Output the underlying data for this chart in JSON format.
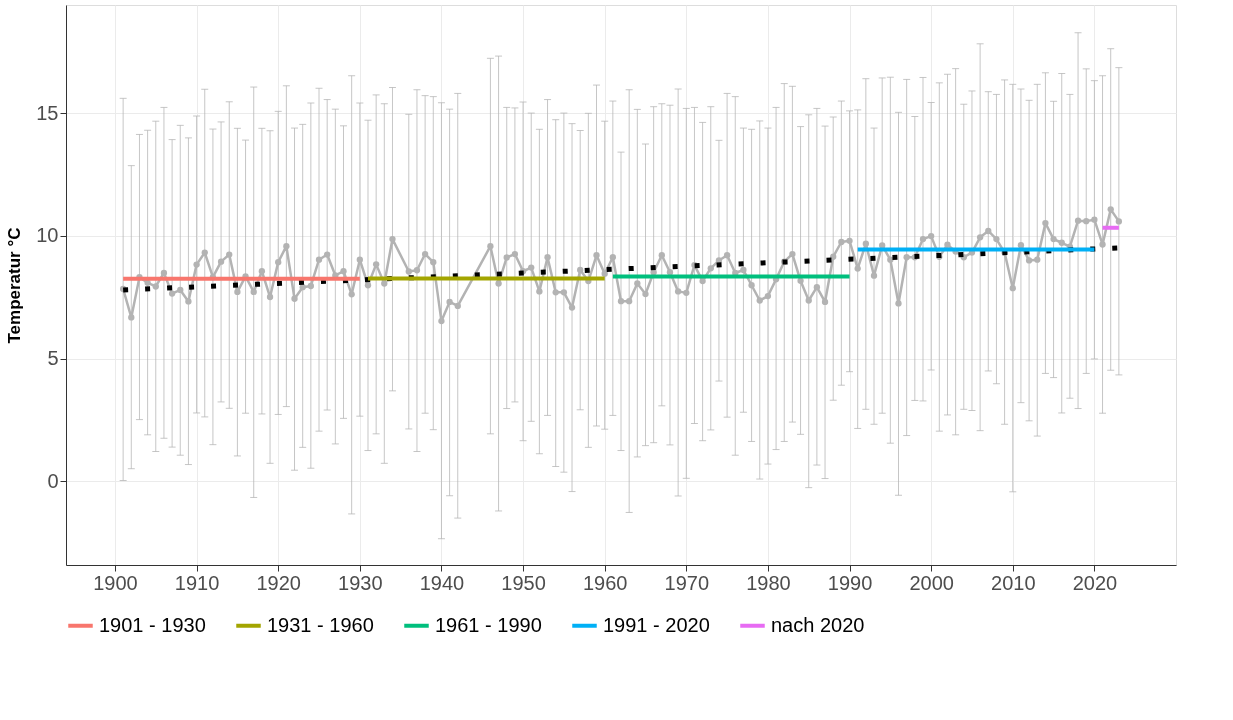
{
  "chart_data": {
    "type": "line",
    "ylabel": "Temperatur °C",
    "xlim": [
      1894,
      2030
    ],
    "ylim": [
      -3.4,
      19.4
    ],
    "xticks": [
      1900,
      1910,
      1920,
      1930,
      1940,
      1950,
      1960,
      1970,
      1980,
      1990,
      2000,
      2010,
      2020
    ],
    "yticks": [
      0,
      5,
      10,
      15
    ],
    "grid": true,
    "legend": "bottom",
    "x": [
      1901,
      1902,
      1903,
      1904,
      1905,
      1906,
      1907,
      1908,
      1909,
      1910,
      1911,
      1912,
      1913,
      1914,
      1915,
      1916,
      1917,
      1918,
      1919,
      1920,
      1921,
      1922,
      1923,
      1924,
      1925,
      1926,
      1927,
      1928,
      1929,
      1930,
      1931,
      1932,
      1933,
      1934,
      1935,
      1936,
      1937,
      1938,
      1939,
      1940,
      1941,
      1942,
      1943,
      1944,
      1945,
      1946,
      1947,
      1948,
      1949,
      1950,
      1951,
      1952,
      1953,
      1954,
      1955,
      1956,
      1957,
      1958,
      1959,
      1960,
      1961,
      1962,
      1963,
      1964,
      1965,
      1966,
      1967,
      1968,
      1969,
      1970,
      1971,
      1972,
      1973,
      1974,
      1975,
      1976,
      1977,
      1978,
      1979,
      1980,
      1981,
      1982,
      1983,
      1984,
      1985,
      1986,
      1987,
      1988,
      1989,
      1990,
      1991,
      1992,
      1993,
      1994,
      1995,
      1996,
      1997,
      1998,
      1999,
      2000,
      2001,
      2002,
      2003,
      2004,
      2005,
      2006,
      2007,
      2008,
      2009,
      2010,
      2011,
      2012,
      2013,
      2014,
      2015,
      2016,
      2017,
      2018,
      2019,
      2020,
      2021,
      2022,
      2023
    ],
    "series": [
      {
        "color": "#b3b3b3",
        "marker": "circle",
        "values": [
          7.84,
          6.68,
          8.32,
          8.09,
          7.94,
          8.49,
          7.65,
          7.8,
          7.33,
          8.83,
          9.32,
          8.32,
          8.95,
          9.24,
          7.72,
          8.35,
          7.72,
          8.56,
          7.51,
          8.93,
          9.58,
          7.44,
          7.91,
          7.96,
          9.03,
          9.24,
          8.39,
          8.56,
          7.62,
          9.03,
          7.99,
          8.84,
          8.06,
          9.87,
          null,
          8.55,
          8.6,
          9.26,
          8.93,
          6.53,
          7.31,
          7.15,
          null,
          null,
          null,
          9.58,
          8.06,
          9.12,
          9.26,
          8.56,
          8.71,
          7.74,
          9.13,
          7.7,
          7.7,
          7.08,
          8.61,
          8.16,
          9.21,
          8.46,
          9.13,
          7.34,
          7.34,
          8.06,
          7.63,
          8.52,
          9.21,
          8.52,
          7.74,
          7.68,
          8.81,
          8.16,
          8.68,
          9.0,
          9.21,
          8.49,
          8.61,
          7.99,
          7.37,
          7.55,
          8.23,
          8.95,
          9.26,
          8.17,
          7.37,
          7.91,
          7.31,
          9.15,
          9.75,
          9.8,
          8.67,
          9.68,
          8.38,
          9.61,
          9.03,
          7.25,
          9.13,
          9.13,
          9.87,
          9.99,
          9.15,
          9.64,
          9.36,
          9.13,
          9.32,
          9.94,
          10.2,
          9.87,
          9.32,
          7.87,
          9.62,
          9.0,
          9.03,
          10.52,
          9.87,
          9.72,
          9.56,
          10.62,
          10.6,
          10.66,
          9.65,
          11.08,
          10.59
        ],
        "errors": [
          [
            0.04,
            15.6
          ],
          [
            0.52,
            12.86
          ],
          [
            2.52,
            14.13
          ],
          [
            1.9,
            14.3
          ],
          [
            1.22,
            14.67
          ],
          [
            1.76,
            15.23
          ],
          [
            1.4,
            13.92
          ],
          [
            1.07,
            14.5
          ],
          [
            0.69,
            13.99
          ],
          [
            2.79,
            14.88
          ],
          [
            2.63,
            15.97
          ],
          [
            1.5,
            14.35
          ],
          [
            3.24,
            14.64
          ],
          [
            2.98,
            15.46
          ],
          [
            1.04,
            14.38
          ],
          [
            2.78,
            13.9
          ],
          [
            -0.65,
            16.06
          ],
          [
            2.75,
            14.38
          ],
          [
            0.74,
            14.28
          ],
          [
            2.73,
            15.07
          ],
          [
            3.05,
            16.11
          ],
          [
            0.46,
            14.39
          ],
          [
            1.39,
            14.54
          ],
          [
            0.54,
            15.41
          ],
          [
            2.05,
            16.01
          ],
          [
            2.91,
            15.55
          ],
          [
            1.53,
            15.16
          ],
          [
            2.57,
            14.48
          ],
          [
            -1.32,
            16.52
          ],
          [
            2.66,
            15.41
          ],
          [
            1.26,
            14.71
          ],
          [
            1.94,
            15.74
          ],
          [
            0.74,
            15.38
          ],
          [
            3.69,
            16.04
          ],
          null,
          [
            2.14,
            14.95
          ],
          [
            1.22,
            15.95
          ],
          [
            2.78,
            15.71
          ],
          [
            2.11,
            15.67
          ],
          [
            -2.33,
            15.42
          ],
          [
            -0.58,
            15.16
          ],
          [
            -1.49,
            15.8
          ],
          null,
          null,
          null,
          [
            1.94,
            17.23
          ],
          [
            -1.2,
            17.32
          ],
          [
            2.97,
            15.23
          ],
          [
            3.24,
            15.21
          ],
          [
            1.66,
            15.45
          ],
          [
            2.45,
            15.0
          ],
          [
            1.13,
            14.34
          ],
          [
            2.69,
            15.55
          ],
          [
            0.61,
            14.73
          ],
          [
            0.38,
            15.0
          ],
          [
            -0.41,
            14.57
          ],
          [
            2.92,
            14.29
          ],
          [
            1.39,
            14.99
          ],
          [
            2.26,
            16.14
          ],
          [
            2.13,
            14.67
          ],
          [
            2.69,
            15.49
          ],
          [
            1.26,
            13.41
          ],
          [
            -1.26,
            15.95
          ],
          [
            1.0,
            15.15
          ],
          [
            1.46,
            13.74
          ],
          [
            1.58,
            15.26
          ],
          [
            3.08,
            15.38
          ],
          [
            1.49,
            15.32
          ],
          [
            -0.59,
            15.98
          ],
          [
            0.13,
            15.19
          ],
          [
            2.36,
            15.23
          ],
          [
            1.66,
            14.62
          ],
          [
            2.1,
            15.26
          ],
          [
            4.09,
            13.89
          ],
          [
            2.62,
            15.8
          ],
          [
            1.07,
            15.67
          ],
          [
            2.82,
            14.39
          ],
          [
            1.63,
            14.34
          ],
          [
            0.1,
            14.68
          ],
          [
            0.71,
            14.39
          ],
          [
            1.3,
            15.23
          ],
          [
            1.63,
            16.2
          ],
          [
            2.42,
            16.09
          ],
          [
            1.92,
            14.45
          ],
          [
            -0.25,
            14.93
          ],
          [
            0.67,
            15.19
          ],
          [
            0.12,
            14.47
          ],
          [
            3.31,
            14.84
          ],
          [
            3.92,
            15.49
          ],
          [
            4.47,
            15.09
          ],
          [
            2.16,
            15.13
          ],
          [
            2.94,
            16.4
          ],
          [
            2.33,
            14.39
          ],
          [
            2.78,
            16.43
          ],
          [
            1.56,
            16.46
          ],
          [
            -0.56,
            15.03
          ],
          [
            1.87,
            16.37
          ],
          [
            3.3,
            14.86
          ],
          [
            3.28,
            16.45
          ],
          [
            4.54,
            15.43
          ],
          [
            2.05,
            16.23
          ],
          [
            2.71,
            16.58
          ],
          [
            1.9,
            16.81
          ],
          [
            2.94,
            15.36
          ],
          [
            2.89,
            15.9
          ],
          [
            2.07,
            17.82
          ],
          [
            4.5,
            15.87
          ],
          [
            3.98,
            15.76
          ],
          [
            2.33,
            16.35
          ],
          [
            -0.42,
            16.17
          ],
          [
            3.21,
            15.98
          ],
          [
            2.47,
            15.52
          ],
          [
            1.85,
            16.17
          ],
          [
            4.4,
            16.64
          ],
          [
            4.23,
            15.48
          ],
          [
            2.79,
            16.61
          ],
          [
            3.39,
            15.76
          ],
          [
            2.97,
            18.27
          ],
          [
            4.4,
            16.8
          ],
          [
            4.99,
            16.32
          ],
          [
            2.78,
            16.52
          ],
          [
            4.53,
            17.62
          ],
          [
            4.34,
            16.85
          ]
        ]
      },
      {
        "color": "#000000",
        "line_style": "dotted",
        "x": [
          1901,
          2023
        ],
        "values": [
          7.8,
          9.51
        ]
      },
      {
        "name": "1901 - 1930",
        "color": "#f8766d",
        "x": [
          1901,
          1930
        ],
        "values": [
          8.25,
          8.25
        ]
      },
      {
        "name": "1931 - 1960",
        "color": "#a3a500",
        "x": [
          1931,
          1960
        ],
        "values": [
          8.26,
          8.26
        ]
      },
      {
        "name": "1961 - 1990",
        "color": "#00bf7d",
        "x": [
          1961,
          1990
        ],
        "values": [
          8.35,
          8.35
        ]
      },
      {
        "name": "1991 - 2020",
        "color": "#00b0f6",
        "x": [
          1991,
          2020
        ],
        "values": [
          9.45,
          9.45
        ]
      },
      {
        "name": "nach 2020",
        "color": "#e76bf3",
        "x": [
          2021,
          2023
        ],
        "values": [
          10.33,
          10.33
        ]
      }
    ]
  }
}
